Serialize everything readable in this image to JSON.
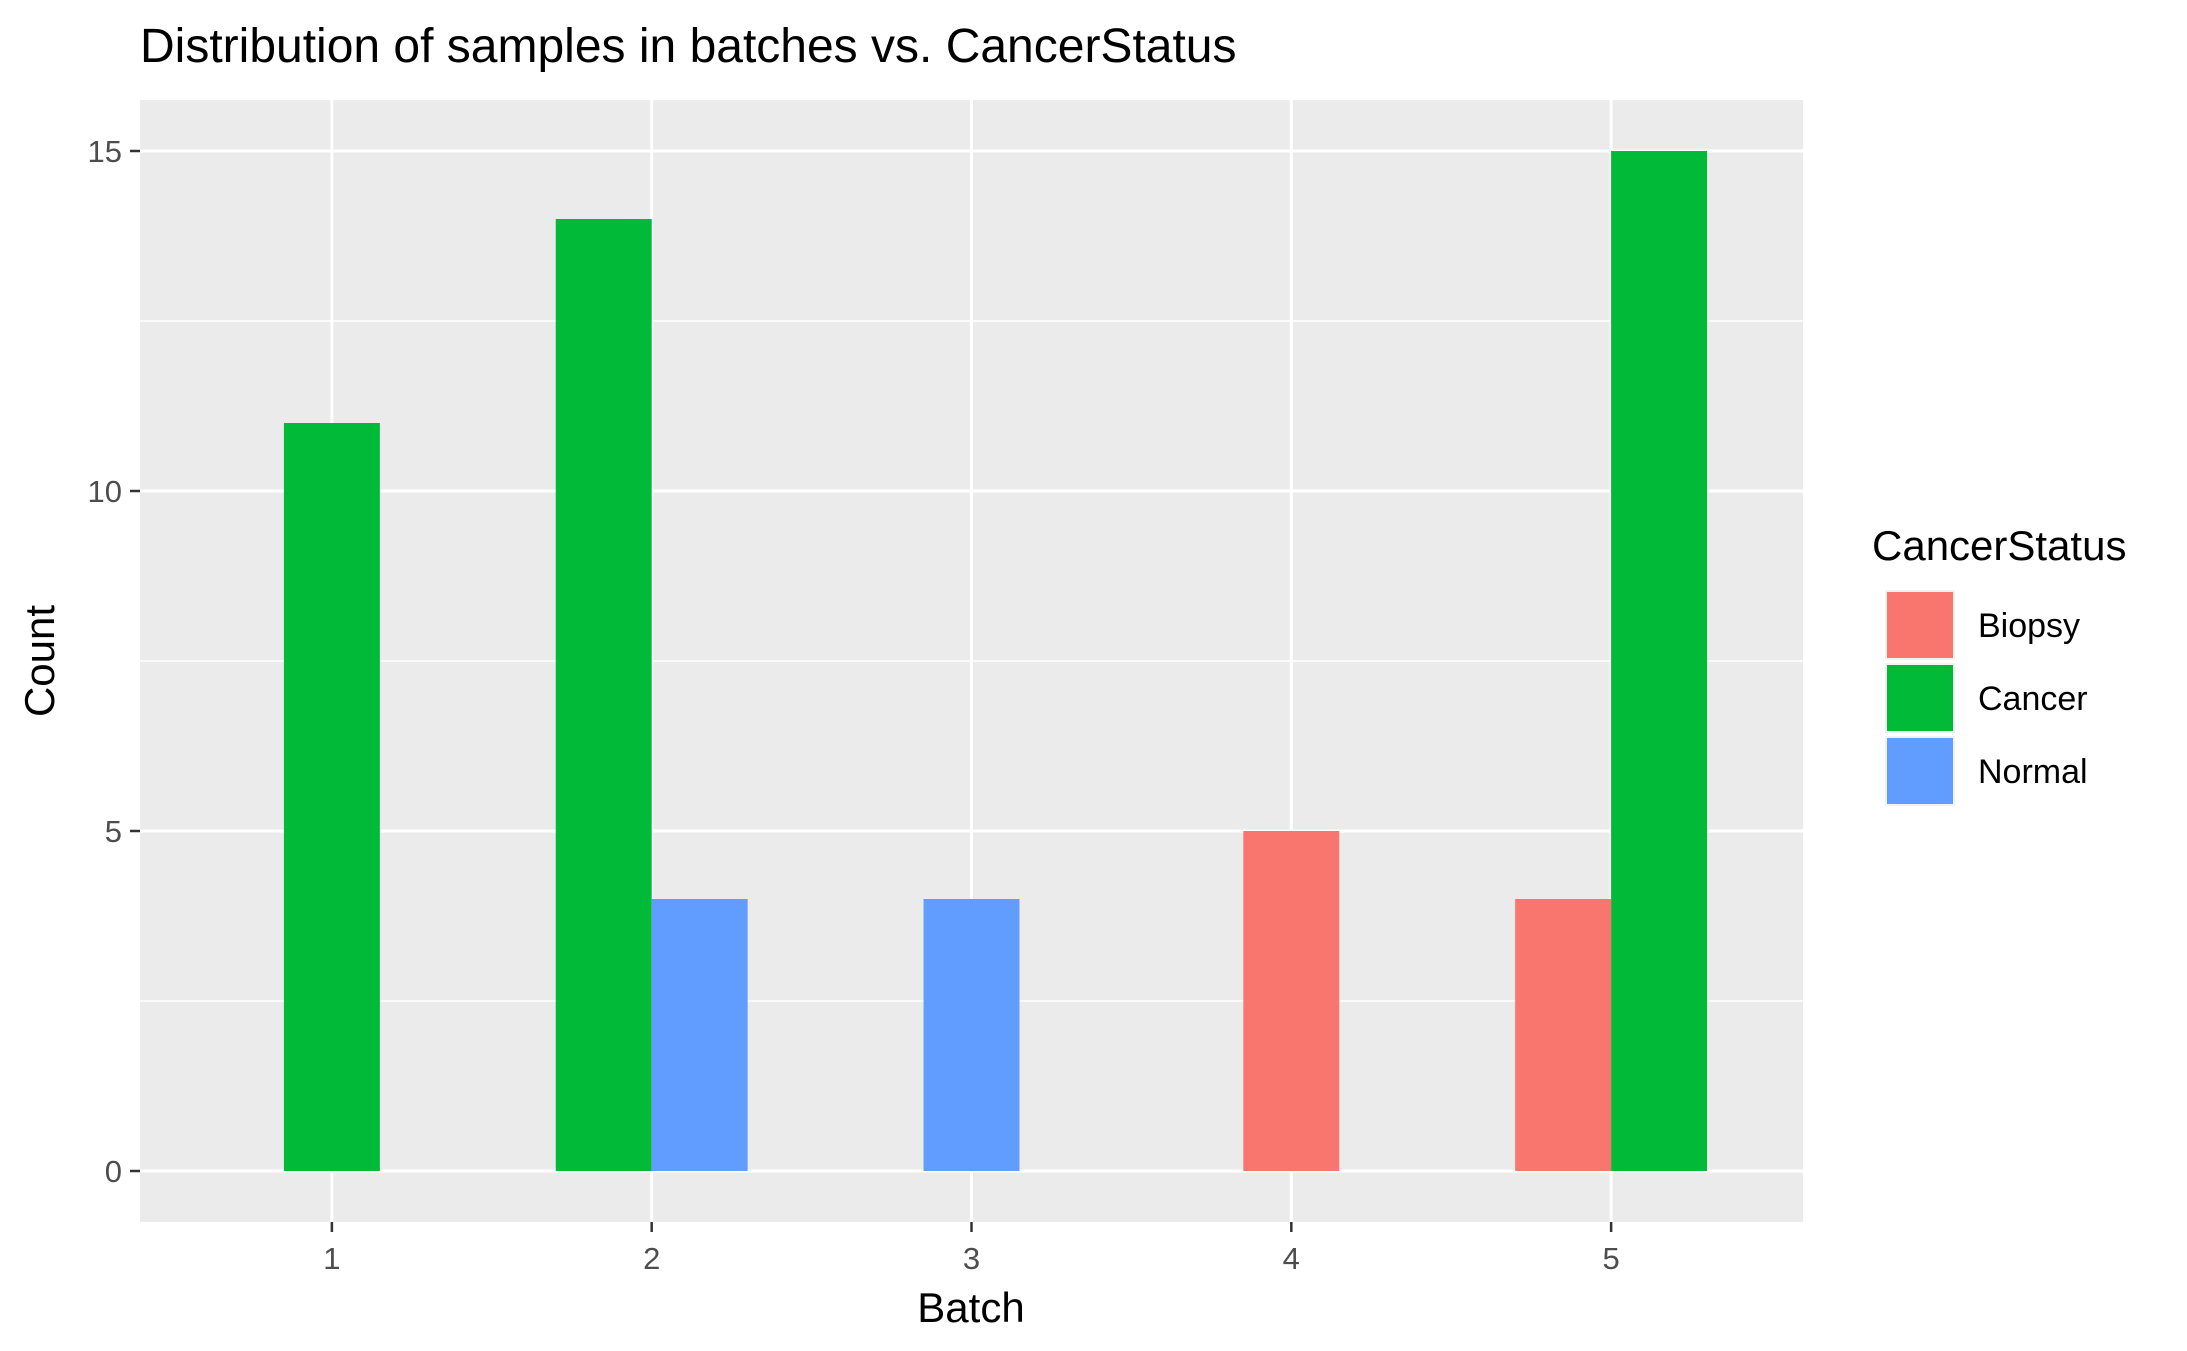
{
  "chart_data": {
    "type": "bar",
    "title": "Distribution of samples in batches vs. CancerStatus",
    "xlabel": "Batch",
    "ylabel": "Count",
    "categories": [
      1,
      2,
      3,
      4,
      5
    ],
    "x_ticks": [
      "1",
      "2",
      "3",
      "4",
      "5"
    ],
    "y_ticks": [
      "0",
      "5",
      "10",
      "15"
    ],
    "xlim": [
      0.4,
      5.6
    ],
    "ylim": [
      -0.75,
      15.75
    ],
    "grid": true,
    "legend": {
      "title": "CancerStatus",
      "placement": "right"
    },
    "series": [
      {
        "name": "Biopsy",
        "color": "#F8766D",
        "values": [
          null,
          null,
          null,
          5,
          4
        ]
      },
      {
        "name": "Cancer",
        "color": "#00BA38",
        "values": [
          11,
          14,
          null,
          null,
          15
        ]
      },
      {
        "name": "Normal",
        "color": "#619CFF",
        "values": [
          null,
          4,
          4,
          null,
          null
        ]
      }
    ]
  }
}
